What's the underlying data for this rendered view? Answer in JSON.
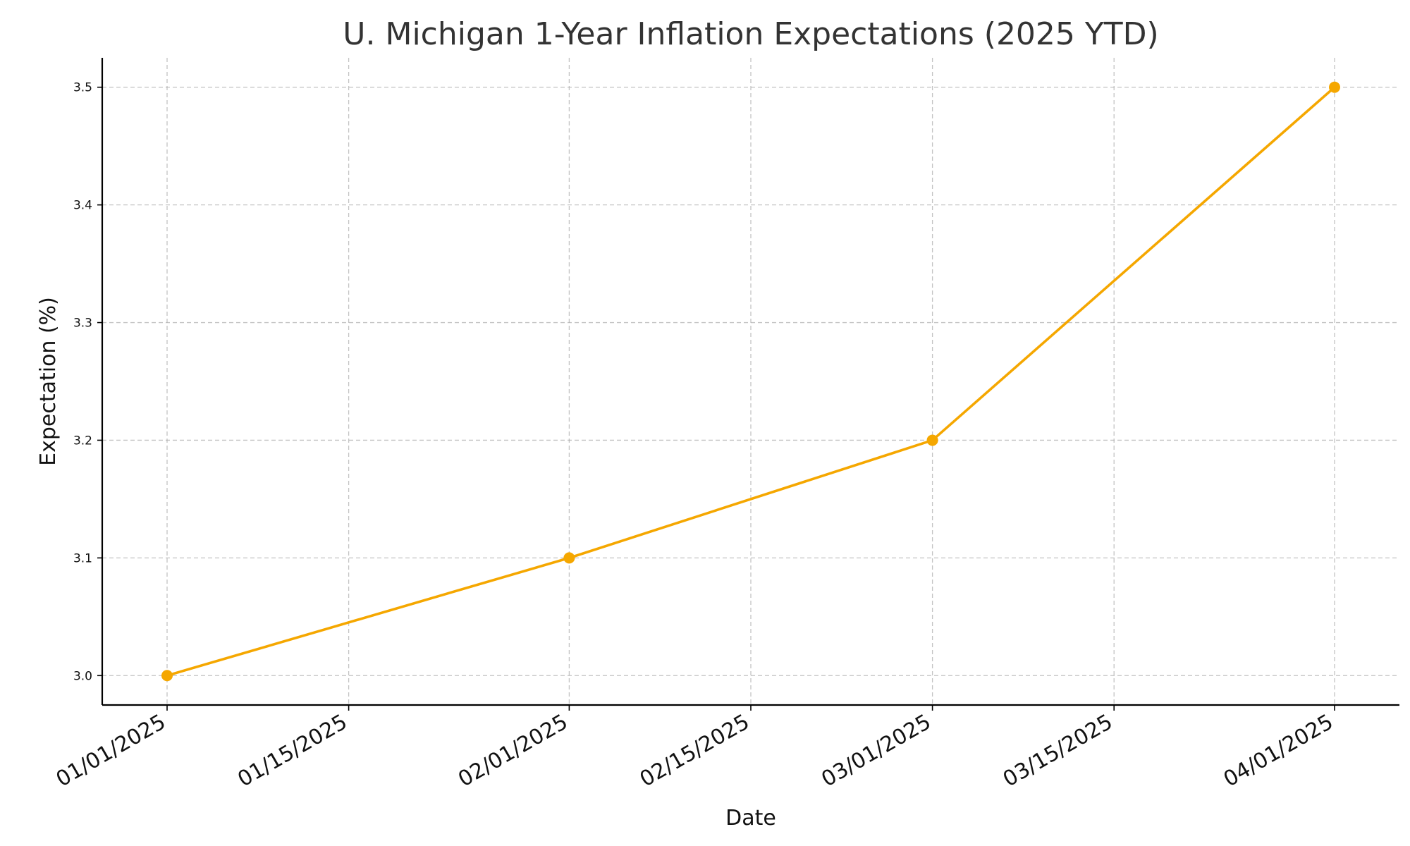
{
  "chart_data": {
    "type": "line",
    "title": "U. Michigan 1-Year Inflation Expectations (2025 YTD)",
    "xlabel": "Date",
    "ylabel": "Expectation (%)",
    "x_ticks": [
      "01/01/2025",
      "01/15/2025",
      "02/01/2025",
      "02/15/2025",
      "03/01/2025",
      "03/15/2025",
      "04/01/2025"
    ],
    "y_ticks": [
      "3.0",
      "3.1",
      "3.2",
      "3.3",
      "3.4",
      "3.5"
    ],
    "xlim": [
      "2024-12-27",
      "2025-04-06"
    ],
    "ylim": [
      2.975,
      3.525
    ],
    "grid": true,
    "series": [
      {
        "color": "#f5a700",
        "marker": "circle",
        "points": [
          {
            "x": "2025-01-01",
            "y": 3.0
          },
          {
            "x": "2025-02-01",
            "y": 3.1
          },
          {
            "x": "2025-03-01",
            "y": 3.2
          },
          {
            "x": "2025-04-01",
            "y": 3.5
          }
        ]
      }
    ]
  }
}
